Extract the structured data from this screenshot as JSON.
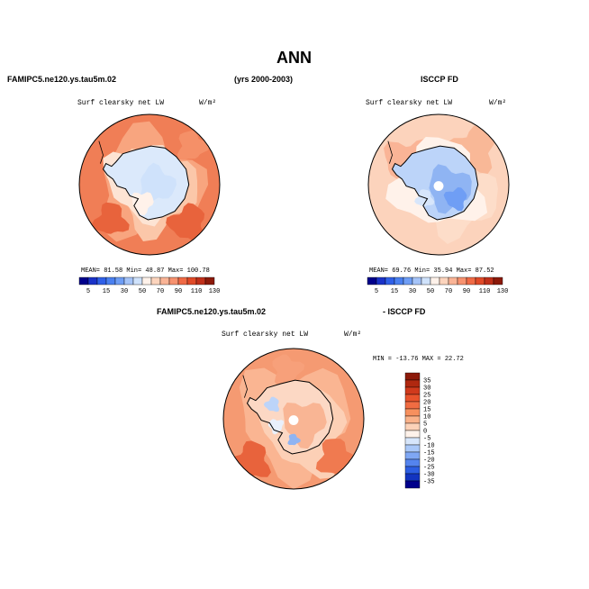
{
  "page": {
    "title": "ANN",
    "left_case": "FAMIPC5.ne120.ys.tau5m.02",
    "period": "(yrs 2000-2003)",
    "right_case": "ISCCP FD",
    "diff_left": "FAMIPC5.ne120.ys.tau5m.02",
    "diff_right": "- ISCCP FD"
  },
  "panels": {
    "model": {
      "field": "Surf clearsky net LW",
      "units": "W/m²",
      "stats": "MEAN=  81.58  Min=  48.87  Max= 100.78"
    },
    "obs": {
      "field": "Surf clearsky net LW",
      "units": "W/m²",
      "stats": "MEAN=  69.76  Min=  35.94  Max=  87.52"
    },
    "diff": {
      "field": "Surf clearsky net LW",
      "units": "W/m²",
      "stats": "MIN = -13.76 MAX =  22.72"
    }
  },
  "chart_data": [
    {
      "type": "heatmap",
      "projection": "south-polar-stereographic",
      "title": "FAMIPC5.ne120.ys.tau5m.02",
      "subtitle": "Surf clearsky net LW",
      "units": "W/m²",
      "mean": 81.58,
      "min": 48.87,
      "max": 100.78,
      "colorbar_labels": [
        "5",
        "15",
        "30",
        "50",
        "70",
        "90",
        "110",
        "130"
      ],
      "colorbar_levels": [
        5,
        10,
        15,
        20,
        30,
        40,
        50,
        60,
        70,
        80,
        90,
        100,
        110,
        120,
        130
      ],
      "colors": [
        "#00008b",
        "#1a32c8",
        "#3060e8",
        "#4a80f0",
        "#6f9ef5",
        "#a5c4f8",
        "#cfe2fb",
        "#fff2ea",
        "#fcd4bd",
        "#fab496",
        "#f7926f",
        "#f06a45",
        "#e04a28",
        "#c0301a",
        "#8c1a0a"
      ]
    },
    {
      "type": "heatmap",
      "projection": "south-polar-stereographic",
      "title": "ISCCP FD",
      "subtitle": "Surf clearsky net LW",
      "units": "W/m²",
      "mean": 69.76,
      "min": 35.94,
      "max": 87.52,
      "colorbar_labels": [
        "5",
        "15",
        "30",
        "50",
        "70",
        "90",
        "110",
        "130"
      ],
      "colorbar_levels": [
        5,
        10,
        15,
        20,
        30,
        40,
        50,
        60,
        70,
        80,
        90,
        100,
        110,
        120,
        130
      ],
      "colors": [
        "#00008b",
        "#1a32c8",
        "#3060e8",
        "#4a80f0",
        "#6f9ef5",
        "#a5c4f8",
        "#cfe2fb",
        "#fff2ea",
        "#fcd4bd",
        "#fab496",
        "#f7926f",
        "#f06a45",
        "#e04a28",
        "#c0301a",
        "#8c1a0a"
      ]
    },
    {
      "type": "heatmap",
      "projection": "south-polar-stereographic",
      "title": "FAMIPC5.ne120.ys.tau5m.02 - ISCCP FD",
      "subtitle": "Surf clearsky net LW",
      "units": "W/m²",
      "min": -13.76,
      "max": 22.72,
      "colorbar_labels": [
        "35",
        "30",
        "25",
        "20",
        "15",
        "10",
        "5",
        "0",
        "-5",
        "-10",
        "-15",
        "-20",
        "-25",
        "-30",
        "-35"
      ],
      "colors": [
        "#8c1a0a",
        "#b02810",
        "#d03a1c",
        "#e8532c",
        "#f06c42",
        "#f7905e",
        "#fab28a",
        "#fcd2b8",
        "#fff2ea",
        "#d7e6fb",
        "#aac8f8",
        "#7fa7f4",
        "#5584ee",
        "#2d5ee2",
        "#1234c0",
        "#00008b"
      ]
    }
  ]
}
